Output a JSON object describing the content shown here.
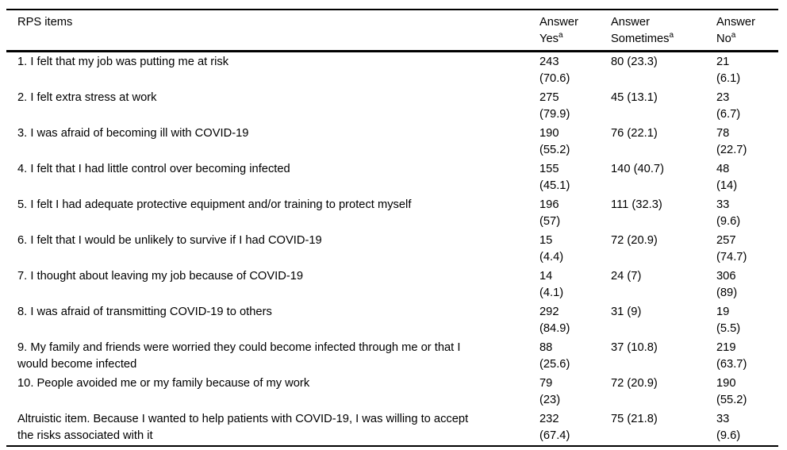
{
  "table": {
    "columns": [
      {
        "label": "RPS items"
      },
      {
        "line1": "Answer",
        "line2": "Yes",
        "sup": "a"
      },
      {
        "line1": "Answer",
        "line2": "Sometimes",
        "sup": "a"
      },
      {
        "line1": "Answer",
        "line2": "No",
        "sup": "a"
      }
    ],
    "rows": [
      {
        "item": "1. I felt that my job was putting me at risk",
        "yes": "243\n(70.6)",
        "sometimes": "80 (23.3)",
        "no": "21\n(6.1)"
      },
      {
        "item": "2. I felt extra stress at work",
        "yes": "275\n(79.9)",
        "sometimes": "45 (13.1)",
        "no": "23\n(6.7)"
      },
      {
        "item": "3. I was afraid of becoming ill with COVID-19",
        "yes": "190\n(55.2)",
        "sometimes": "76 (22.1)",
        "no": "78\n(22.7)"
      },
      {
        "item": "4. I felt that I had little control over becoming infected",
        "yes": "155\n(45.1)",
        "sometimes": "140 (40.7)",
        "no": "48\n(14)"
      },
      {
        "item": "5. I felt I had adequate protective equipment and/or training to protect myself",
        "yes": "196\n(57)",
        "sometimes": "111 (32.3)",
        "no": "33\n(9.6)"
      },
      {
        "item": "6. I felt that I would be unlikely to survive if I had COVID-19",
        "yes": "15\n(4.4)",
        "sometimes": "72 (20.9)",
        "no": "257\n(74.7)"
      },
      {
        "item": "7. I thought about leaving my job because of COVID-19",
        "yes": "14\n(4.1)",
        "sometimes": "24 (7)",
        "no": "306\n(89)"
      },
      {
        "item": "8. I was afraid of transmitting COVID-19 to others",
        "yes": "292\n(84.9)",
        "sometimes": "31 (9)",
        "no": "19\n(5.5)"
      },
      {
        "item": "9. My family and friends were worried they could become infected through me or that I\nwould become infected",
        "yes": "88\n(25.6)",
        "sometimes": "37 (10.8)",
        "no": "219\n(63.7)"
      },
      {
        "item": "10. People avoided me or my family because of my work",
        "yes": "79\n(23)",
        "sometimes": "72 (20.9)",
        "no": "190\n(55.2)"
      },
      {
        "item": "Altruistic item. Because I wanted to help patients with COVID-19, I was willing to accept\nthe risks associated with it",
        "yes": "232\n(67.4)",
        "sometimes": "75 (21.8)",
        "no": "33\n(9.6)"
      }
    ]
  }
}
